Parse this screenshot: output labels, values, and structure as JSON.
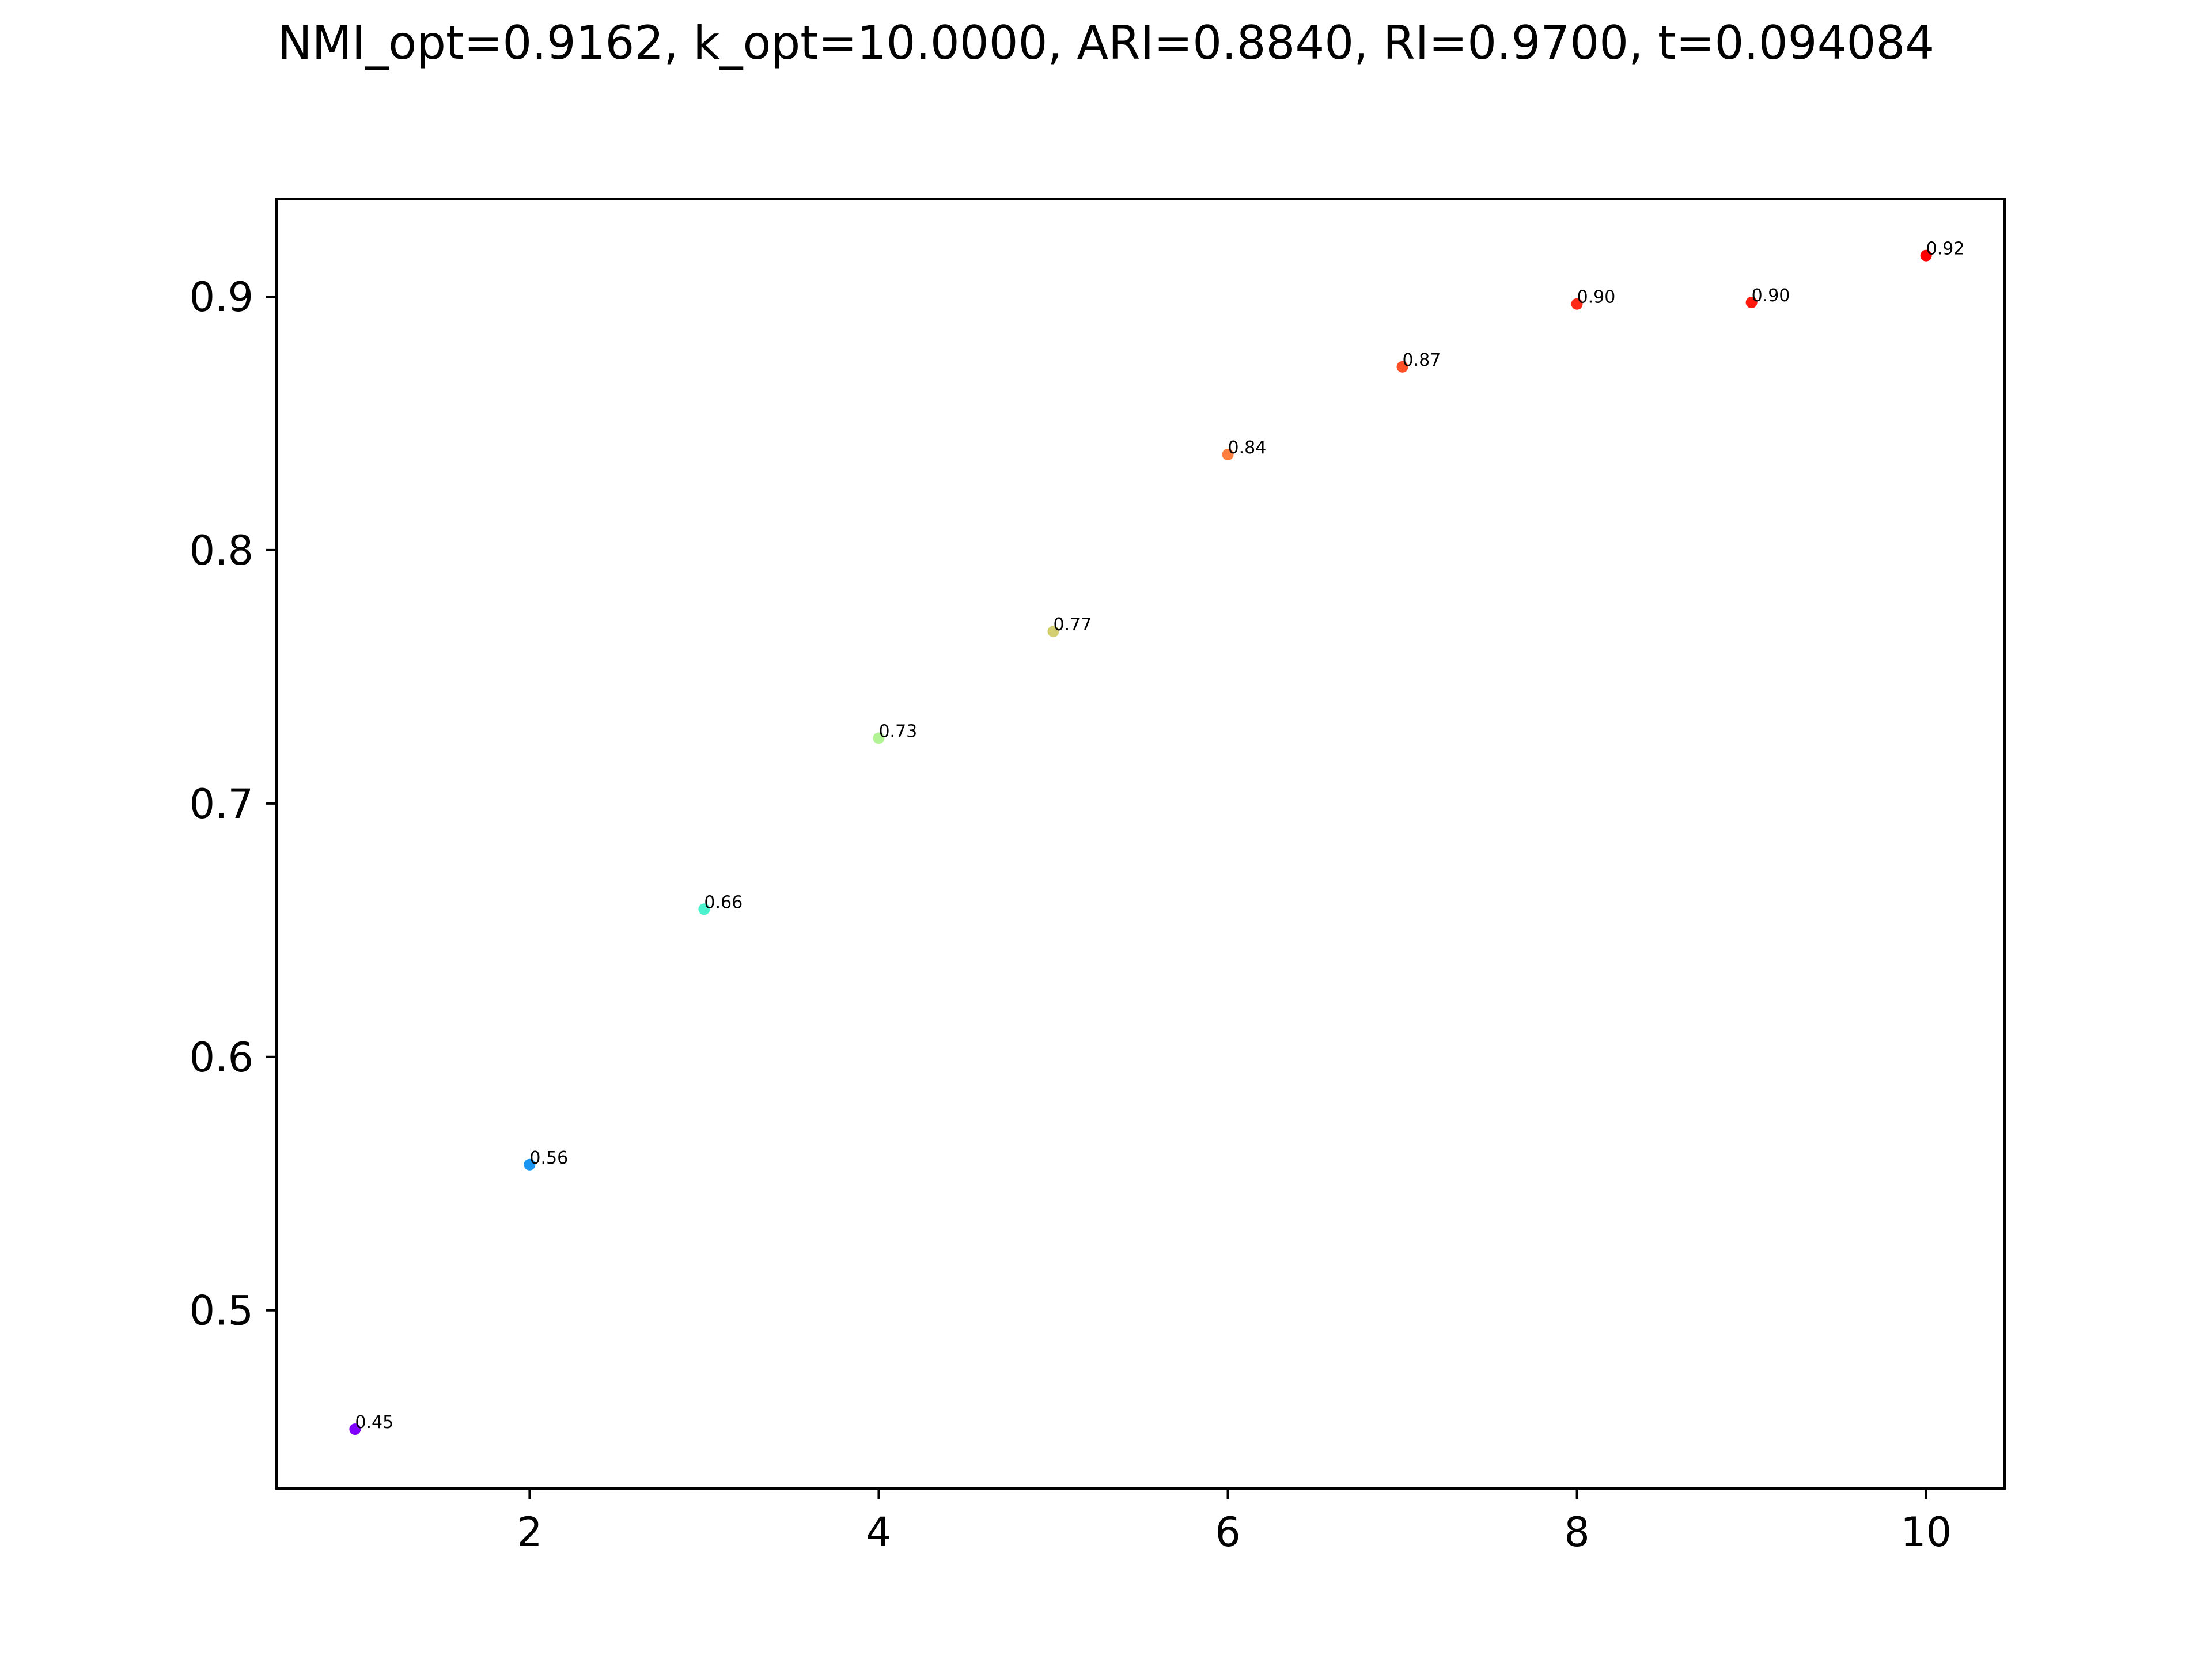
{
  "chart_data": {
    "type": "scatter",
    "title": "NMI_opt=0.9162, k_opt=10.0000, ARI=0.8840, RI=0.9700, t=0.094084",
    "xlabel": "",
    "ylabel": "",
    "xlim": [
      0.55,
      10.45
    ],
    "ylim": [
      0.4297,
      0.9384
    ],
    "xticks": [
      2,
      4,
      6,
      8,
      10
    ],
    "xtick_labels": [
      "2",
      "4",
      "6",
      "8",
      "10"
    ],
    "yticks": [
      0.5,
      0.6,
      0.7,
      0.8,
      0.9
    ],
    "ytick_labels": [
      "0.5",
      "0.6",
      "0.7",
      "0.8",
      "0.9"
    ],
    "grid": false,
    "legend": "none",
    "points": [
      {
        "x": 1,
        "y": 0.4531,
        "label": "0.45",
        "color": "#8000ff"
      },
      {
        "x": 2,
        "y": 0.5575,
        "label": "0.56",
        "color": "#1996f3"
      },
      {
        "x": 3,
        "y": 0.6583,
        "label": "0.66",
        "color": "#4df3ce"
      },
      {
        "x": 4,
        "y": 0.7258,
        "label": "0.73",
        "color": "#b2f396"
      },
      {
        "x": 5,
        "y": 0.7679,
        "label": "0.77",
        "color": "#d4cf70"
      },
      {
        "x": 6,
        "y": 0.8377,
        "label": "0.84",
        "color": "#ff7f3f"
      },
      {
        "x": 7,
        "y": 0.8723,
        "label": "0.87",
        "color": "#ff4f29"
      },
      {
        "x": 8,
        "y": 0.8971,
        "label": "0.90",
        "color": "#ff2a16"
      },
      {
        "x": 9,
        "y": 0.8977,
        "label": "0.90",
        "color": "#ff1a0d"
      },
      {
        "x": 10,
        "y": 0.9162,
        "label": "0.92",
        "color": "#ff0000"
      }
    ]
  }
}
